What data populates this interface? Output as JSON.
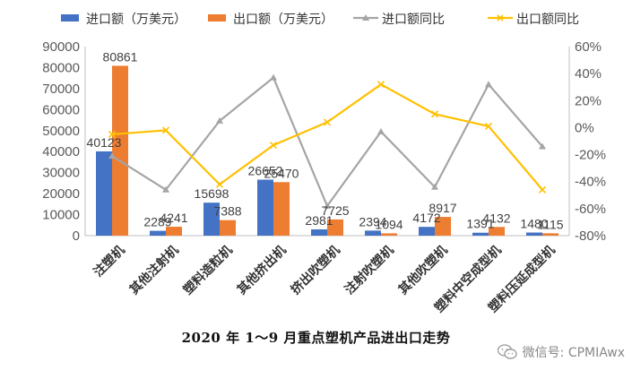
{
  "chart_data": {
    "type": "bar",
    "title": "",
    "categories": [
      "注塑机",
      "其他注射机",
      "塑料造粒机",
      "其他挤出机",
      "挤出吹塑机",
      "注射吹塑机",
      "其他吹塑机",
      "塑料中空成型机",
      "塑料压延成型机"
    ],
    "series": [
      {
        "name": "进口额（万美元）",
        "type": "bar",
        "axis": "left",
        "color": "#4472C4",
        "values": [
          40123,
          2289,
          15698,
          26652,
          2981,
          2394,
          4172,
          1391,
          1480
        ],
        "labels": [
          "40123",
          "2289",
          "15698",
          "26652",
          "2981",
          "2394",
          "4172",
          "1391",
          "1480"
        ]
      },
      {
        "name": "出口额（万美元）",
        "type": "bar",
        "axis": "left",
        "color": "#ED7D31",
        "values": [
          80861,
          4241,
          7388,
          25470,
          7725,
          1094,
          8917,
          4132,
          1115
        ],
        "labels": [
          "80861",
          "4241",
          "7388",
          "25470",
          "7725",
          "1094",
          "8917",
          "4132",
          "1115"
        ]
      },
      {
        "name": "进口额同比",
        "type": "line",
        "axis": "right",
        "color": "#A5A5A5",
        "marker": "triangle",
        "values": [
          -21,
          -46,
          5,
          37,
          -58,
          -3,
          -44,
          32,
          -14
        ]
      },
      {
        "name": "出口额同比",
        "type": "line",
        "axis": "right",
        "color": "#FFC000",
        "marker": "x",
        "values": [
          -5,
          -2,
          -42,
          -13,
          4,
          32,
          10,
          1,
          -46
        ]
      }
    ],
    "left_axis": {
      "min": 0,
      "max": 90000,
      "step": 10000,
      "ticks": [
        "0",
        "10000",
        "20000",
        "30000",
        "40000",
        "50000",
        "60000",
        "70000",
        "80000",
        "90000"
      ]
    },
    "right_axis": {
      "min": -80,
      "max": 60,
      "step": 20,
      "unit": "%",
      "ticks": [
        "-80%",
        "-60%",
        "-40%",
        "-20%",
        "0%",
        "20%",
        "40%",
        "60%"
      ]
    },
    "grid": false,
    "legend_position": "top"
  },
  "caption": "2020 年 1～9 月重点塑机产品进出口走势",
  "watermark": {
    "text": "微信号: CPMIAwx",
    "icon": "wechat-icon"
  }
}
